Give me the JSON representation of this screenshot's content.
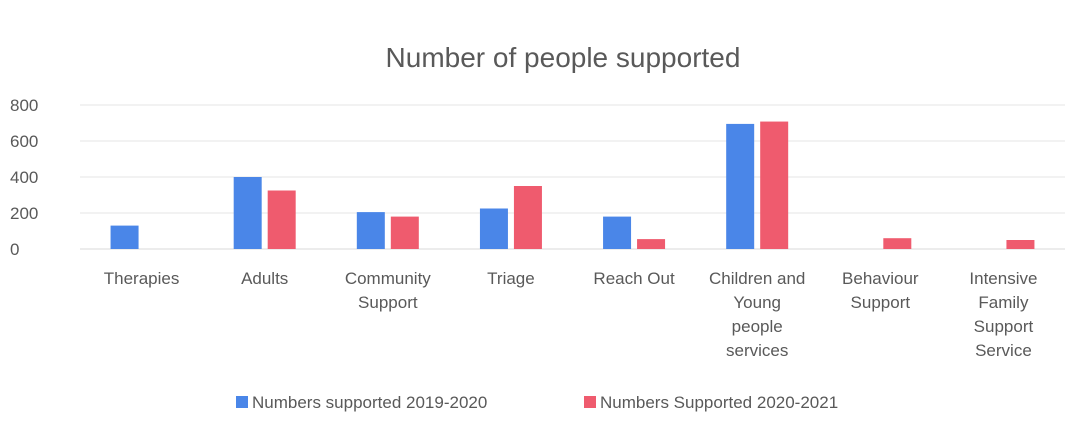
{
  "chart_data": {
    "type": "bar",
    "title": "Number of people supported",
    "categories": [
      [
        "Therapies"
      ],
      [
        "Adults"
      ],
      [
        "Community",
        "Support"
      ],
      [
        "Triage"
      ],
      [
        "Reach Out"
      ],
      [
        "Children and",
        "Young",
        "people",
        "services"
      ],
      [
        "Behaviour",
        "Support"
      ],
      [
        "Intensive",
        "Family",
        "Support",
        "Service"
      ]
    ],
    "series": [
      {
        "name": "Numbers supported 2019-2020",
        "color": "#4a86e8",
        "values": [
          130,
          400,
          205,
          225,
          180,
          695,
          0,
          0
        ]
      },
      {
        "name": "Numbers Supported 2020-2021",
        "color": "#ef5b6e",
        "values": [
          0,
          325,
          180,
          350,
          55,
          708,
          60,
          50
        ]
      }
    ],
    "yticks": [
      0,
      200,
      400,
      600,
      800
    ],
    "ylim": [
      0,
      800
    ],
    "grid": true,
    "legend_position": "bottom"
  }
}
